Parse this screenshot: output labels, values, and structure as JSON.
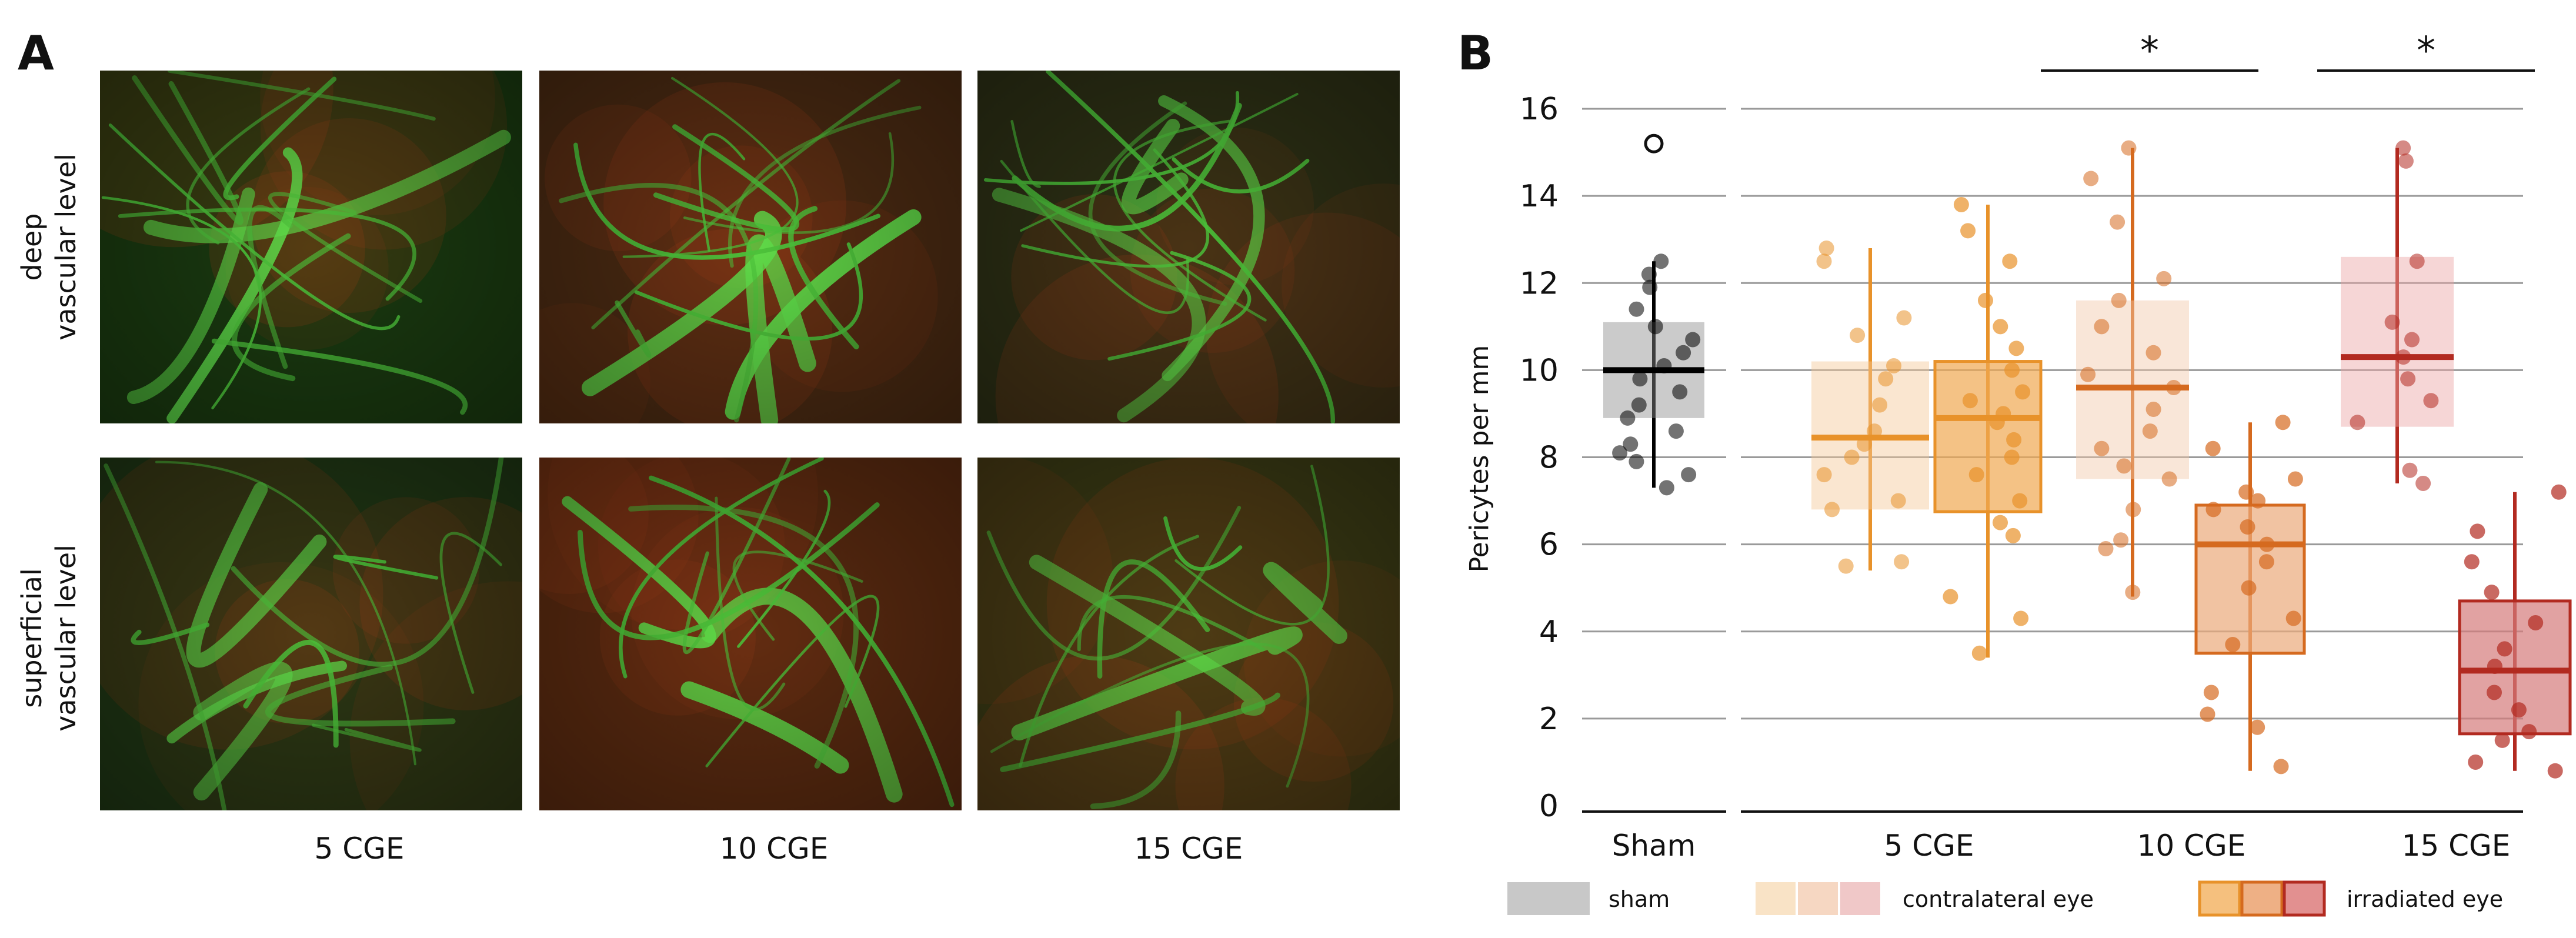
{
  "panel_a": {
    "letter": "A",
    "row_labels": [
      [
        "deep",
        "vascular level"
      ],
      [
        "superficial",
        "vascular level"
      ]
    ],
    "col_labels": [
      "5 CGE",
      "10 CGE",
      "15 CGE"
    ],
    "bg_colors": [
      "#1a3a10",
      "#4a2a12",
      "#2d3015",
      "#1f3614",
      "#5a2a10",
      "#3a3a14"
    ]
  },
  "chart_data": {
    "type": "box",
    "panel_letter": "B",
    "ylabel": "Pericytes per mm",
    "ylim": [
      0,
      16
    ],
    "yticks": [
      0,
      2,
      4,
      6,
      8,
      10,
      12,
      14,
      16
    ],
    "grid": true,
    "categories": [
      "Sham",
      "5 CGE",
      "10 CGE",
      "15 CGE"
    ],
    "significance": [
      {
        "group": "10 CGE",
        "label": "*"
      },
      {
        "group": "15 CGE",
        "label": "*"
      }
    ],
    "boxes": [
      {
        "group": "Sham",
        "series": "sham",
        "color": "#8c8c8c",
        "median_color": "#000000",
        "q1": 8.9,
        "median": 10.0,
        "q3": 11.1,
        "whisker_low": 7.3,
        "whisker_high": 12.5,
        "outliers": [
          15.2
        ],
        "points": [
          7.3,
          7.6,
          7.9,
          8.1,
          8.3,
          8.6,
          8.9,
          9.2,
          9.5,
          9.8,
          10.1,
          10.4,
          10.7,
          11.0,
          11.4,
          11.9,
          12.2,
          12.5
        ]
      },
      {
        "group": "5 CGE",
        "series": "contralateral eye",
        "color": "#f5c896",
        "median_color": "#e8922a",
        "q1": 6.8,
        "median": 8.45,
        "q3": 10.2,
        "whisker_low": 5.4,
        "whisker_high": 12.8,
        "outliers": [],
        "points": [
          5.5,
          5.6,
          6.8,
          7.0,
          7.6,
          8.0,
          8.3,
          8.6,
          9.2,
          9.8,
          10.1,
          10.8,
          11.2,
          12.5,
          12.8
        ]
      },
      {
        "group": "5 CGE",
        "series": "irradiated eye",
        "color": "#f0a851",
        "median_color": "#e8922a",
        "q1": 6.75,
        "median": 8.9,
        "q3": 10.2,
        "whisker_low": 3.4,
        "whisker_high": 13.8,
        "outliers": [],
        "points": [
          3.5,
          4.3,
          4.8,
          6.2,
          6.5,
          7.0,
          7.6,
          8.0,
          8.4,
          8.8,
          9.0,
          9.3,
          9.5,
          10.0,
          10.5,
          11.0,
          11.6,
          12.5,
          13.2,
          13.8
        ]
      },
      {
        "group": "10 CGE",
        "series": "contralateral eye",
        "color": "#f2c8a8",
        "median_color": "#d56a1f",
        "q1": 7.5,
        "median": 9.6,
        "q3": 11.6,
        "whisker_low": 4.8,
        "whisker_high": 15.1,
        "outliers": [],
        "points": [
          4.9,
          5.9,
          6.1,
          6.8,
          7.5,
          7.8,
          8.2,
          8.6,
          9.1,
          9.6,
          9.9,
          10.4,
          11.0,
          11.6,
          12.1,
          13.4,
          14.4,
          15.1
        ]
      },
      {
        "group": "10 CGE",
        "series": "irradiated eye",
        "color": "#ebaa7a",
        "median_color": "#d56a1f",
        "q1": 3.5,
        "median": 6.0,
        "q3": 6.9,
        "whisker_low": 0.8,
        "whisker_high": 8.8,
        "outliers": [],
        "points": [
          0.9,
          1.8,
          2.1,
          2.6,
          3.7,
          4.3,
          5.0,
          5.6,
          6.0,
          6.4,
          6.8,
          7.0,
          7.2,
          7.5,
          8.2,
          8.8
        ]
      },
      {
        "group": "15 CGE",
        "series": "contralateral eye",
        "color": "#eaa3a3",
        "median_color": "#b22a20",
        "q1": 8.7,
        "median": 10.3,
        "q3": 12.6,
        "whisker_low": 7.4,
        "whisker_high": 15.1,
        "outliers": [],
        "points": [
          7.4,
          7.7,
          8.8,
          9.3,
          9.8,
          10.3,
          10.7,
          11.1,
          12.5,
          14.8,
          15.1
        ]
      },
      {
        "group": "15 CGE",
        "series": "irradiated eye",
        "color": "#d47b7b",
        "median_color": "#b22a20",
        "q1": 1.65,
        "median": 3.1,
        "q3": 4.7,
        "whisker_low": 0.8,
        "whisker_high": 7.2,
        "outliers": [],
        "points": [
          0.8,
          1.0,
          1.5,
          1.7,
          2.2,
          2.6,
          3.2,
          3.6,
          4.2,
          4.9,
          5.6,
          6.3,
          7.2
        ]
      }
    ],
    "legend": [
      {
        "label": "sham",
        "swatches": [
          "#c8c8c8"
        ],
        "outlined": false
      },
      {
        "label": "contralateral eye",
        "swatches": [
          "#f9e3c6",
          "#f6d7c2",
          "#f0c8c8"
        ],
        "outlined": false
      },
      {
        "label": "irradiated eye",
        "swatches": [
          "#f5c07e",
          "#eeb085",
          "#e29090"
        ],
        "outlined": true,
        "outline_colors": [
          "#e8922a",
          "#d56a1f",
          "#b22a20"
        ]
      }
    ]
  }
}
